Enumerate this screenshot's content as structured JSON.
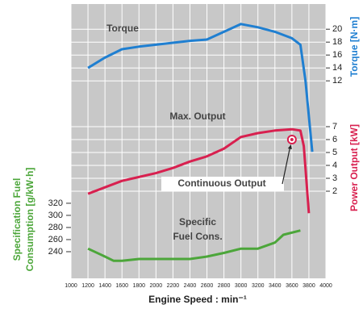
{
  "chart_data": {
    "type": "line",
    "x_label": "Engine Speed : min⁻¹",
    "xlim": [
      1000,
      4000
    ],
    "xticks": [
      1000,
      1200,
      1400,
      1600,
      1800,
      2000,
      2200,
      2400,
      2600,
      2800,
      3000,
      3200,
      3400,
      3600,
      3800,
      4000
    ],
    "grid": true,
    "axes": {
      "torque": {
        "label": "Torque [N·m]",
        "color": "#1f7fd1",
        "lim": [
          -18.6,
          23.9
        ],
        "ticks": [
          12,
          14,
          16,
          18,
          20
        ]
      },
      "power": {
        "label": "Power Output [kW]",
        "color": "#d8204f",
        "lim": [
          -4.75,
          16.5
        ],
        "ticks": [
          2,
          3,
          4,
          5,
          6,
          7
        ]
      },
      "fuel": {
        "label": [
          "Specification Fuel",
          "Consumption [g/kW·h]"
        ],
        "color": "#4ca63a",
        "lim": [
          196,
          649
        ],
        "ticks": [
          240,
          260,
          280,
          300,
          320
        ]
      }
    },
    "series": [
      {
        "name": "Torque",
        "axis": "torque",
        "color": "#1f7fd1",
        "x": [
          1200,
          1400,
          1600,
          1800,
          2000,
          2200,
          2400,
          2600,
          2800,
          3000,
          3200,
          3400,
          3600,
          3700,
          3760,
          3840
        ],
        "values": [
          14,
          15.6,
          16.9,
          17.3,
          17.6,
          17.9,
          18.2,
          18.4,
          19.6,
          20.8,
          20.3,
          19.6,
          18.6,
          17.6,
          12,
          1
        ]
      },
      {
        "name": "Max. Output",
        "axis": "power",
        "color": "#d8204f",
        "x": [
          1200,
          1400,
          1600,
          1800,
          2000,
          2200,
          2400,
          2600,
          2800,
          3000,
          3200,
          3400,
          3600,
          3700,
          3740,
          3800
        ],
        "values": [
          1.8,
          2.3,
          2.8,
          3.1,
          3.4,
          3.8,
          4.3,
          4.7,
          5.3,
          6.2,
          6.5,
          6.7,
          6.8,
          6.7,
          5.5,
          0.3
        ]
      },
      {
        "name": "Specific Fuel Cons.",
        "axis": "fuel",
        "color": "#4ca63a",
        "x": [
          1200,
          1400,
          1500,
          1600,
          1800,
          2000,
          2200,
          2400,
          2600,
          2800,
          3000,
          3200,
          3400,
          3500,
          3700
        ],
        "values": [
          245,
          232,
          225,
          225,
          228,
          228,
          228,
          228,
          232,
          238,
          245,
          245,
          255,
          268,
          275
        ]
      }
    ],
    "continuous_output_point": {
      "x": 3600,
      "value": 6.0
    },
    "annotations": [
      "Torque",
      "Max. Output",
      "Continuous Output",
      "Specific",
      "Fuel Cons."
    ]
  }
}
